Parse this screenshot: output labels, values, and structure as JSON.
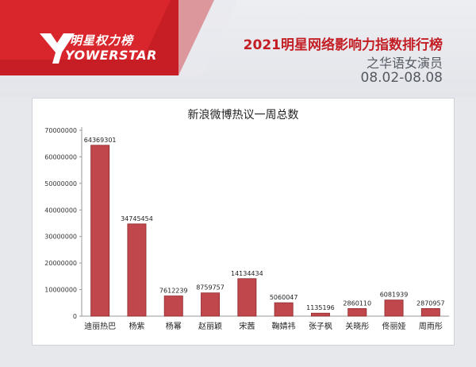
{
  "brand": {
    "logo_cn": "明星权力榜",
    "logo_en": "YOWERSTAR"
  },
  "header": {
    "title": "2021明星网络影响力指数排行榜",
    "subtitle": "之华语女演员",
    "date_range": "08.02-08.08"
  },
  "colors": {
    "bar": "#c0474b",
    "bar_edge": "#8e2a2e",
    "accent": "#c41e25"
  },
  "chart_data": {
    "type": "bar",
    "title": "新浪微博热议一周总数",
    "categories": [
      "迪丽热巴",
      "杨紫",
      "杨幂",
      "赵丽颖",
      "宋茜",
      "鞠婧祎",
      "张子枫",
      "关晓彤",
      "佟丽娅",
      "周雨彤"
    ],
    "values": [
      64369301,
      34745454,
      7612239,
      8759757,
      14134434,
      5060047,
      1135196,
      2860110,
      6081939,
      2870957
    ],
    "value_labels": [
      "64369301",
      "34745454",
      "7612239",
      "8759757",
      "14134434",
      "5060047",
      "1135196",
      "2860110",
      "6081939",
      "2870957"
    ],
    "ylim": [
      0,
      70000000
    ],
    "yticks": [
      0,
      10000000,
      20000000,
      30000000,
      40000000,
      50000000,
      60000000,
      70000000
    ],
    "ytick_labels": [
      "0",
      "10000000",
      "20000000",
      "30000000",
      "40000000",
      "50000000",
      "60000000",
      "70000000"
    ],
    "grid": false,
    "legend": "none"
  }
}
